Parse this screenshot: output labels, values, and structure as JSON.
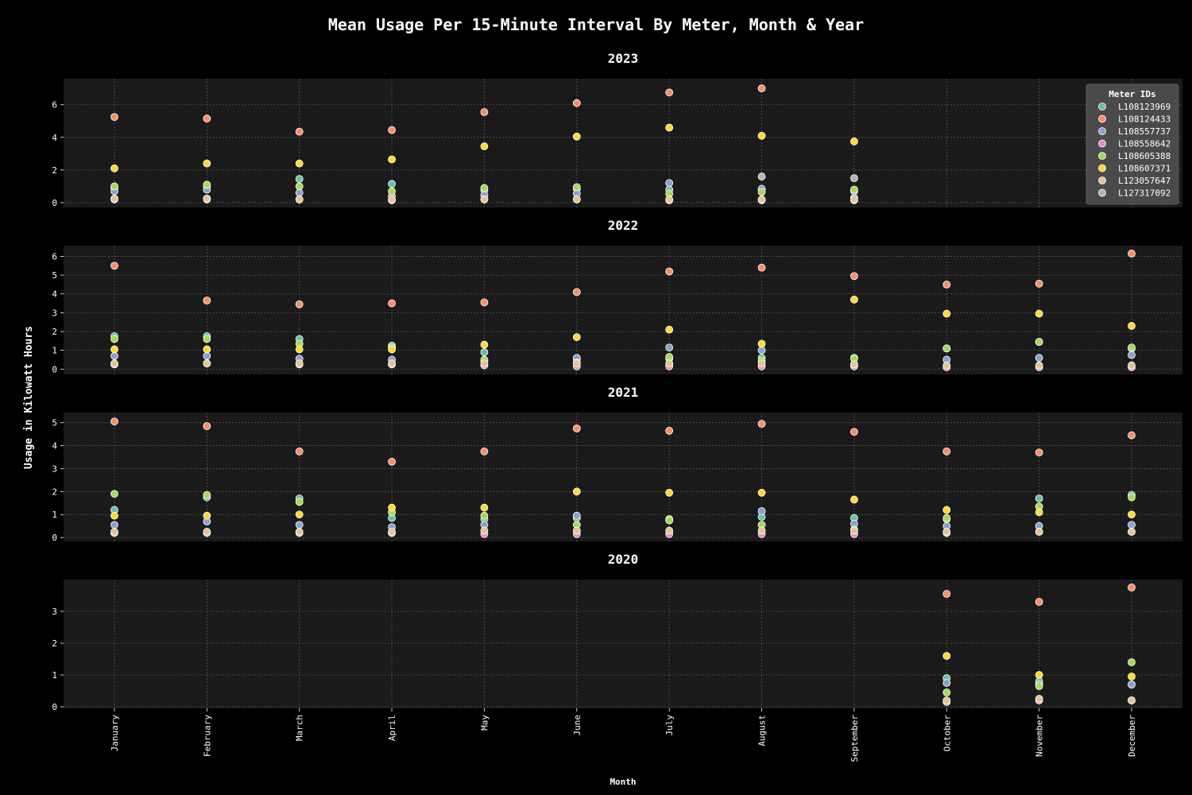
{
  "chart_data": {
    "type": "scatter",
    "title": "Mean Usage Per 15-Minute Interval By Meter, Month & Year",
    "xlabel": "Month",
    "ylabel": "Usage in Kilowatt Hours",
    "grid": true,
    "legend_title": "Meter IDs",
    "legend_position": "top-right",
    "months": [
      "January",
      "February",
      "March",
      "April",
      "May",
      "June",
      "July",
      "August",
      "September",
      "October",
      "November",
      "December"
    ],
    "meters": [
      {
        "id": "L108123969",
        "color": "#66c2a5"
      },
      {
        "id": "L108124433",
        "color": "#fc8d62"
      },
      {
        "id": "L108557737",
        "color": "#8da0cb"
      },
      {
        "id": "L108558642",
        "color": "#e78ac3"
      },
      {
        "id": "L108605388",
        "color": "#a6d854"
      },
      {
        "id": "L108607371",
        "color": "#ffd92f"
      },
      {
        "id": "L123057647",
        "color": "#e5c494"
      },
      {
        "id": "L127317092",
        "color": "#b3b3b3"
      }
    ],
    "panels": [
      {
        "year": "2023",
        "ylim": [
          -0.2,
          7.4
        ],
        "yticks": [
          0,
          2,
          4,
          6
        ],
        "series": {
          "L108123969": [
            0.9,
            1.0,
            1.45,
            1.15,
            0.75,
            0.85,
            0.8,
            0.8,
            0.7,
            null,
            null,
            null
          ],
          "L108124433": [
            5.25,
            5.15,
            4.35,
            4.45,
            5.55,
            6.1,
            6.75,
            7.0,
            null,
            null,
            null,
            null
          ],
          "L108557737": [
            0.7,
            0.8,
            0.6,
            0.4,
            0.45,
            0.55,
            1.2,
            0.85,
            0.3,
            null,
            null,
            null
          ],
          "L108558642": [
            0.2,
            0.2,
            0.2,
            0.15,
            0.2,
            0.2,
            0.15,
            0.15,
            0.15,
            null,
            null,
            null
          ],
          "L108605388": [
            1.0,
            1.1,
            1.0,
            0.7,
            0.9,
            0.95,
            0.55,
            0.65,
            0.8,
            null,
            null,
            null
          ],
          "L108607371": [
            2.1,
            2.4,
            2.4,
            2.65,
            3.45,
            4.05,
            4.6,
            4.1,
            3.75,
            null,
            null,
            null
          ],
          "L123057647": [
            0.25,
            0.25,
            0.2,
            0.2,
            0.2,
            0.2,
            0.2,
            0.2,
            0.2,
            null,
            null,
            null
          ],
          "L127317092": [
            null,
            null,
            null,
            null,
            null,
            null,
            null,
            1.6,
            1.5,
            null,
            null,
            null
          ]
        }
      },
      {
        "year": "2022",
        "ylim": [
          -0.2,
          6.4
        ],
        "yticks": [
          0,
          1,
          2,
          3,
          4,
          5,
          6
        ],
        "series": {
          "L108123969": [
            1.75,
            1.75,
            1.6,
            1.25,
            0.9,
            0.55,
            0.55,
            0.6,
            0.6,
            1.1,
            1.45,
            1.1
          ],
          "L108124433": [
            5.5,
            3.65,
            3.45,
            3.5,
            3.55,
            4.1,
            5.2,
            5.4,
            4.95,
            4.5,
            4.55,
            6.15
          ],
          "L108557737": [
            0.7,
            0.7,
            0.55,
            0.5,
            0.45,
            0.6,
            1.15,
            1.0,
            0.25,
            0.5,
            0.6,
            0.75
          ],
          "L108558642": [
            0.25,
            0.3,
            0.25,
            0.25,
            0.2,
            0.15,
            0.15,
            0.15,
            0.15,
            0.1,
            0.1,
            0.1
          ],
          "L108605388": [
            1.6,
            1.6,
            1.35,
            1.15,
            0.5,
            0.35,
            0.65,
            0.45,
            0.55,
            1.1,
            1.45,
            1.15
          ],
          "L108607371": [
            1.05,
            1.05,
            1.05,
            1.05,
            1.3,
            1.7,
            2.1,
            1.35,
            3.7,
            2.95,
            2.95,
            2.3
          ],
          "L123057647": [
            0.3,
            0.3,
            0.3,
            0.3,
            0.3,
            0.3,
            0.3,
            0.3,
            0.25,
            0.2,
            0.2,
            0.2
          ],
          "L127317092": [
            null,
            null,
            null,
            null,
            null,
            null,
            null,
            null,
            null,
            null,
            null,
            null
          ]
        }
      },
      {
        "year": "2021",
        "ylim": [
          -0.1,
          5.3
        ],
        "yticks": [
          0,
          1,
          2,
          3,
          4,
          5
        ],
        "series": {
          "L108123969": [
            1.2,
            1.75,
            1.7,
            0.85,
            0.8,
            0.85,
            0.8,
            0.9,
            0.85,
            0.8,
            1.7,
            1.85
          ],
          "L108124433": [
            5.05,
            4.85,
            3.75,
            3.3,
            3.75,
            4.75,
            4.65,
            4.95,
            4.6,
            3.75,
            3.7,
            4.45
          ],
          "L108557737": [
            0.55,
            0.7,
            0.55,
            0.45,
            0.55,
            0.95,
            0.75,
            1.15,
            0.6,
            0.5,
            0.5,
            0.55
          ],
          "L108558642": [
            0.2,
            0.2,
            0.2,
            0.2,
            0.15,
            0.15,
            0.15,
            0.15,
            0.15,
            0.2,
            0.25,
            0.25
          ],
          "L108605388": [
            1.9,
            1.85,
            1.55,
            1.1,
            0.95,
            0.55,
            0.75,
            0.55,
            0.35,
            0.85,
            1.35,
            1.75
          ],
          "L108607371": [
            0.95,
            0.95,
            1.0,
            1.3,
            1.3,
            2.0,
            1.95,
            1.95,
            1.65,
            1.2,
            1.1,
            1.0
          ],
          "L123057647": [
            0.25,
            0.25,
            0.25,
            0.25,
            0.3,
            0.3,
            0.3,
            0.3,
            0.3,
            0.25,
            0.25,
            0.25
          ],
          "L127317092": [
            null,
            null,
            null,
            null,
            null,
            null,
            null,
            null,
            null,
            null,
            null,
            null
          ]
        }
      },
      {
        "year": "2020",
        "ylim": [
          0,
          3.9
        ],
        "yticks": [
          0,
          1,
          2,
          3
        ],
        "series": {
          "L108123969": [
            null,
            null,
            null,
            null,
            null,
            null,
            null,
            null,
            null,
            0.9,
            0.8,
            0.7
          ],
          "L108124433": [
            null,
            null,
            null,
            null,
            null,
            null,
            null,
            null,
            null,
            3.55,
            3.3,
            3.75
          ],
          "L108557737": [
            null,
            null,
            null,
            null,
            null,
            null,
            null,
            null,
            null,
            0.75,
            0.7,
            0.7
          ],
          "L108558642": [
            null,
            null,
            null,
            null,
            null,
            null,
            null,
            null,
            null,
            0.15,
            0.2,
            0.2
          ],
          "L108605388": [
            null,
            null,
            null,
            null,
            null,
            null,
            null,
            null,
            null,
            0.45,
            0.65,
            1.4
          ],
          "L108607371": [
            null,
            null,
            null,
            null,
            null,
            null,
            null,
            null,
            null,
            1.6,
            1.0,
            0.95
          ],
          "L123057647": [
            null,
            null,
            null,
            null,
            null,
            null,
            null,
            null,
            null,
            0.2,
            0.25,
            0.2
          ],
          "L127317092": [
            null,
            null,
            null,
            null,
            null,
            null,
            null,
            null,
            null,
            null,
            null,
            null
          ]
        }
      }
    ]
  }
}
